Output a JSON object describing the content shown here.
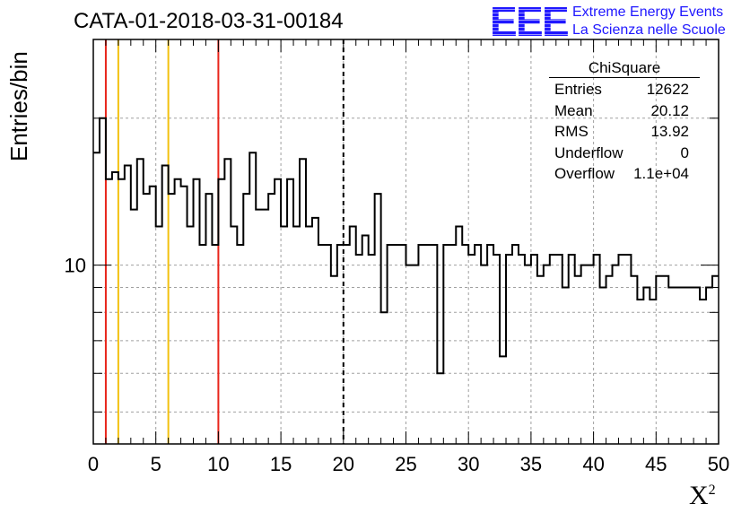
{
  "title": "CATA-01-2018-03-31-00184",
  "logo": {
    "mark": "EEE",
    "line1": "Extreme Energy Events",
    "line2": "La Scienza nelle Scuole",
    "color": "#1f17ff"
  },
  "stats_box": {
    "title": "ChiSquare",
    "rows": [
      {
        "key": "Entries",
        "value": "12622"
      },
      {
        "key": "Mean",
        "value": "20.12"
      },
      {
        "key": "RMS",
        "value": "13.92"
      },
      {
        "key": "Underflow",
        "value": "0"
      },
      {
        "key": "Overflow",
        "value": "1.1e+04"
      }
    ]
  },
  "chart_data": {
    "type": "histogram",
    "title": "CATA-01-2018-03-31-00184",
    "xlabel": "X",
    "xlabel_superscript": "2",
    "ylabel": "Entries/bin",
    "xlim": [
      0,
      50
    ],
    "ylim": [
      4.3,
      29
    ],
    "yscale": "log",
    "grid": true,
    "bin_width": 0.5,
    "x_ticks": [
      "0",
      "5",
      "10",
      "15",
      "20",
      "25",
      "30",
      "35",
      "40",
      "45",
      "50"
    ],
    "y_ticks": [
      "10"
    ],
    "counts": [
      17,
      20,
      15,
      15.5,
      15,
      16,
      13,
      16.5,
      14,
      14.5,
      12,
      16,
      14,
      15,
      14.5,
      12,
      15,
      11,
      14,
      11,
      15,
      16.5,
      12,
      11,
      14,
      17,
      13,
      13,
      14,
      15,
      12,
      15,
      12,
      16.5,
      12,
      12.5,
      11,
      11,
      9.5,
      11,
      11,
      12,
      10.5,
      11.5,
      10.5,
      14,
      8,
      11,
      11,
      11,
      10,
      10,
      11,
      11,
      11,
      6,
      11,
      11,
      12,
      11,
      10.5,
      11,
      10,
      11,
      10.5,
      6.5,
      10.5,
      11,
      10.5,
      10,
      10.5,
      9.5,
      10,
      10.5,
      10.5,
      9,
      10.5,
      9.5,
      10,
      10,
      10.5,
      9,
      9.5,
      10,
      10.5,
      10.5,
      9.5,
      8.5,
      9,
      8.5,
      9.5,
      9.5,
      9,
      9,
      9,
      9,
      9,
      8.5,
      9,
      9.5
    ],
    "vertical_lines": [
      {
        "x": 1,
        "color": "#e8251b",
        "style": "solid"
      },
      {
        "x": 2,
        "color": "#f2c10f",
        "style": "solid"
      },
      {
        "x": 6,
        "color": "#f2c10f",
        "style": "solid"
      },
      {
        "x": 10,
        "color": "#e8251b",
        "style": "solid"
      },
      {
        "x": 20,
        "color": "#000000",
        "style": "dashed"
      }
    ]
  }
}
